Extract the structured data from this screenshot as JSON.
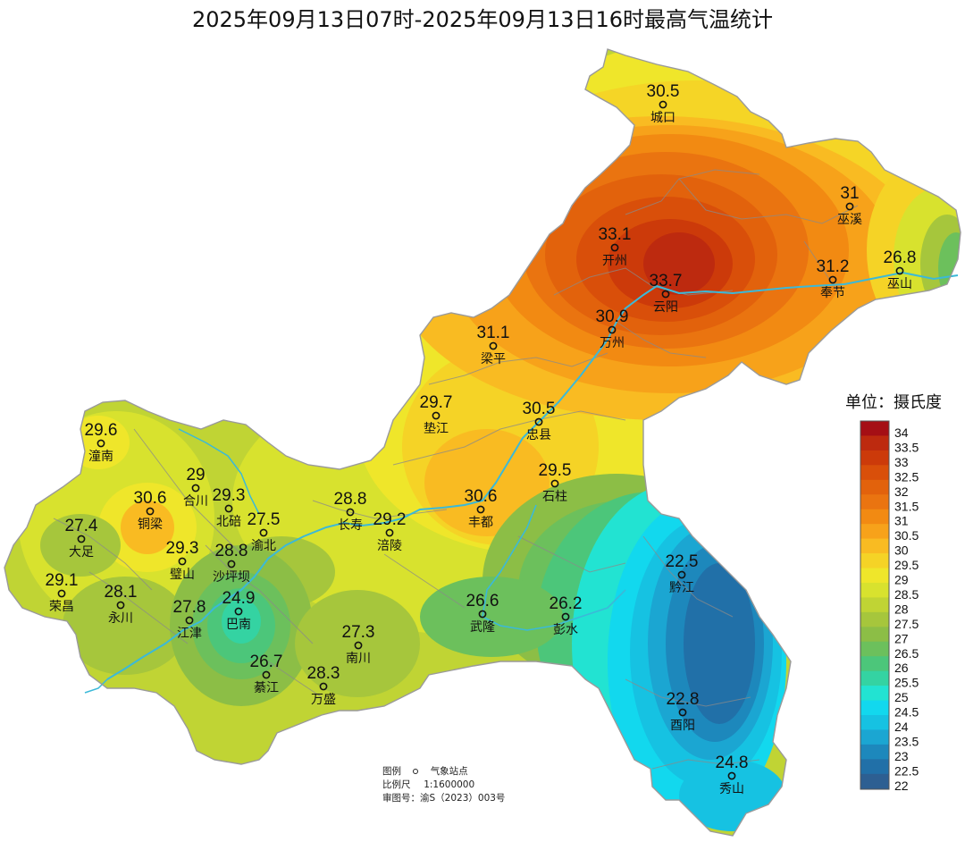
{
  "title": "2025年09月13日07时-2025年09月13日16时最高气温统计",
  "unit_label": "单位：摄氏度",
  "stations": [
    {
      "id": "chengkou",
      "name": "城口",
      "value": "30.5"
    },
    {
      "id": "wuxi",
      "name": "巫溪",
      "value": "31"
    },
    {
      "id": "kaizhou",
      "name": "开州",
      "value": "33.1"
    },
    {
      "id": "yunyang",
      "name": "云阳",
      "value": "33.7"
    },
    {
      "id": "fengjie",
      "name": "奉节",
      "value": "31.2"
    },
    {
      "id": "wushan",
      "name": "巫山",
      "value": "26.8"
    },
    {
      "id": "wanzhou",
      "name": "万州",
      "value": "30.9"
    },
    {
      "id": "liangping",
      "name": "梁平",
      "value": "31.1"
    },
    {
      "id": "dianjiang",
      "name": "垫江",
      "value": "29.7"
    },
    {
      "id": "zhongxian",
      "name": "忠县",
      "value": "30.5"
    },
    {
      "id": "tongnan",
      "name": "潼南",
      "value": "29.6"
    },
    {
      "id": "hechuan",
      "name": "合川",
      "value": "29"
    },
    {
      "id": "tongliang",
      "name": "铜梁",
      "value": "30.6"
    },
    {
      "id": "beibei",
      "name": "北碚",
      "value": "29.3"
    },
    {
      "id": "yubei",
      "name": "渝北",
      "value": "27.5"
    },
    {
      "id": "changshou",
      "name": "长寿",
      "value": "28.8"
    },
    {
      "id": "fuling",
      "name": "涪陵",
      "value": "29.2"
    },
    {
      "id": "fengdu",
      "name": "丰都",
      "value": "30.6"
    },
    {
      "id": "shizhu",
      "name": "石柱",
      "value": "29.5"
    },
    {
      "id": "dazu",
      "name": "大足",
      "value": "27.4"
    },
    {
      "id": "bishan",
      "name": "璧山",
      "value": "29.3"
    },
    {
      "id": "shapingba",
      "name": "沙坪坝",
      "value": "28.8"
    },
    {
      "id": "rongchang",
      "name": "荣昌",
      "value": "29.1"
    },
    {
      "id": "yongchuan",
      "name": "永川",
      "value": "28.1"
    },
    {
      "id": "jiangjin",
      "name": "江津",
      "value": "27.8"
    },
    {
      "id": "banan",
      "name": "巴南",
      "value": "24.9"
    },
    {
      "id": "nanchuan",
      "name": "南川",
      "value": "27.3"
    },
    {
      "id": "qijiang",
      "name": "綦江",
      "value": "26.7"
    },
    {
      "id": "wansheng",
      "name": "万盛",
      "value": "28.3"
    },
    {
      "id": "wulong",
      "name": "武隆",
      "value": "26.6"
    },
    {
      "id": "pengshui",
      "name": "彭水",
      "value": "26.2"
    },
    {
      "id": "qianjiang",
      "name": "黔江",
      "value": "22.5"
    },
    {
      "id": "youyang",
      "name": "酉阳",
      "value": "22.8"
    },
    {
      "id": "xiushan",
      "name": "秀山",
      "value": "24.8"
    }
  ],
  "legend": {
    "labels": [
      "34",
      "33.5",
      "33",
      "32.5",
      "32",
      "31.5",
      "31",
      "30.5",
      "30",
      "29.5",
      "29",
      "28.5",
      "28",
      "27.5",
      "27",
      "26.5",
      "26",
      "25.5",
      "25",
      "24.5",
      "24",
      "23.5",
      "23",
      "22.5",
      "22"
    ],
    "colors": [
      "#a50f15",
      "#bd2a0f",
      "#cc3a0a",
      "#d94f0a",
      "#e2620c",
      "#ea7410",
      "#f28a12",
      "#f7a21a",
      "#f9bb22",
      "#f5d326",
      "#efe62a",
      "#d8e22e",
      "#c0d434",
      "#a6c63c",
      "#8cbe46",
      "#6cc05c",
      "#4cc67a",
      "#34d3a2",
      "#22e3d2",
      "#12d8ee",
      "#16c2e2",
      "#1ba6d2",
      "#1d88bc",
      "#2170a8",
      "#2d5f92"
    ]
  },
  "info": {
    "legend_label": "图例",
    "station_label": "气象站点",
    "scale_label": "比例尺",
    "scale_value": "1:1600000",
    "approval_label": "审图号：",
    "approval_value": "渝S（2023）003号"
  }
}
